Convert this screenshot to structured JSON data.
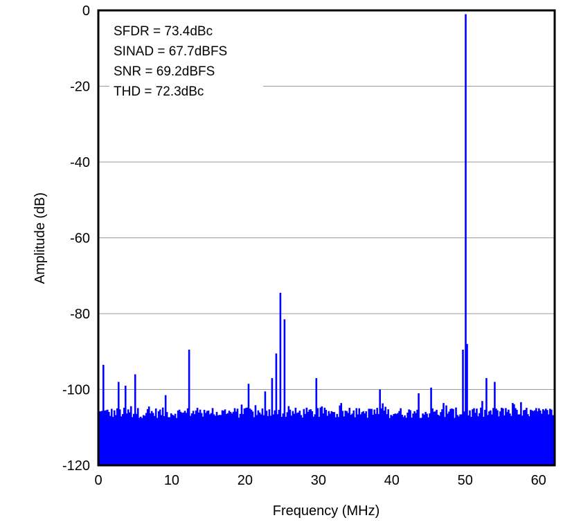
{
  "chart_data": {
    "type": "bar",
    "title": "",
    "xlabel": "Frequency (MHz)",
    "ylabel": "Amplitude (dB)",
    "xlim": [
      0,
      62.2
    ],
    "ylim": [
      -120,
      0
    ],
    "xticks": [
      "0",
      "10",
      "20",
      "30",
      "40",
      "50",
      "60"
    ],
    "yticks": [
      "0",
      "-20",
      "-40",
      "-60",
      "-80",
      "-100",
      "-120"
    ],
    "grid": "horizontal",
    "legend": "none",
    "series_color": "#0000FF",
    "annotations": [
      "SFDR = 73.4dBc",
      "SINAD = 67.7dBFS",
      "SNR = 69.2dBFS",
      "THD = 72.3dBc"
    ],
    "noise_floor_db_range": [
      -110,
      -103
    ],
    "spurs": {
      "x": [
        0.5,
        2.6,
        3.6,
        4.9,
        9.0,
        12.3,
        20.4,
        22.6,
        23.5,
        24.1,
        24.7,
        25.3,
        29.6,
        38.3,
        43.6,
        45.3,
        49.5,
        49.9,
        50.2,
        52.7,
        53.9
      ],
      "y": [
        -93.5,
        -98,
        -99,
        -96,
        -101.5,
        -89.5,
        -98.5,
        -100.5,
        -97,
        -90.5,
        -74.5,
        -81.5,
        -97,
        -100,
        -101,
        -99.5,
        -89.5,
        -1,
        -88,
        -97,
        -98
      ]
    }
  }
}
